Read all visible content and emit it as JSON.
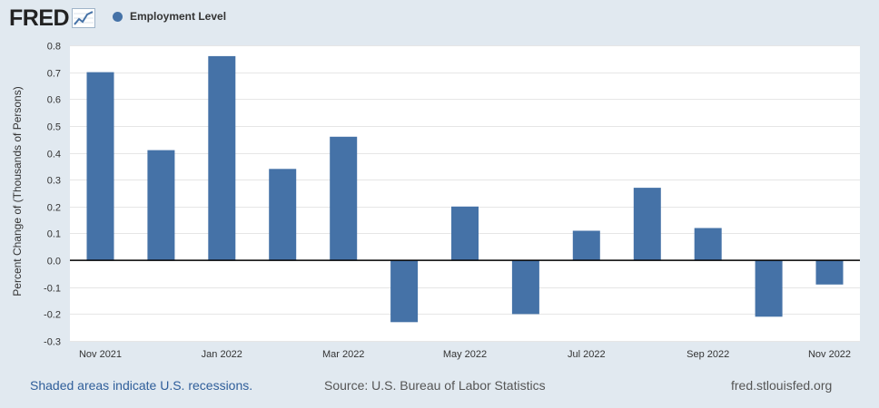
{
  "header": {
    "logo_text": "FRED",
    "logo_icon": "line-graph-icon",
    "legend_label": "Employment Level",
    "legend_color": "#4572a7"
  },
  "footer": {
    "recession_note": "Shaded areas indicate U.S. recessions.",
    "source": "Source: U.S. Bureau of Labor Statistics",
    "url": "fred.stlouisfed.org"
  },
  "colors": {
    "background": "#e1e9f0",
    "plot_background": "#ffffff",
    "bar": "#4572a7",
    "grid": "#e6e6e6"
  },
  "chart_data": {
    "type": "bar",
    "ylabel": "Percent Change of (Thousands of Persons)",
    "ylim": [
      -0.3,
      0.8
    ],
    "yticks": [
      0.8,
      0.7,
      0.6,
      0.5,
      0.4,
      0.3,
      0.2,
      0.1,
      0.0,
      -0.1,
      -0.2,
      -0.3
    ],
    "ytick_labels": [
      "0.8",
      "0.7",
      "0.6",
      "0.5",
      "0.4",
      "0.3",
      "0.2",
      "0.1",
      "0.0",
      "-0.1",
      "-0.2",
      "-0.3"
    ],
    "grid": true,
    "categories": [
      "Nov 2021",
      "Dec 2021",
      "Jan 2022",
      "Feb 2022",
      "Mar 2022",
      "Apr 2022",
      "May 2022",
      "Jun 2022",
      "Jul 2022",
      "Aug 2022",
      "Sep 2022",
      "Oct 2022",
      "Nov 2022"
    ],
    "xtick_labels": [
      "Nov 2021",
      "",
      "Jan 2022",
      "",
      "Mar 2022",
      "",
      "May 2022",
      "",
      "Jul 2022",
      "",
      "Sep 2022",
      "",
      "Nov 2022"
    ],
    "series": [
      {
        "name": "Employment Level",
        "values": [
          0.7,
          0.41,
          0.76,
          0.34,
          0.46,
          -0.23,
          0.2,
          -0.2,
          0.11,
          0.27,
          0.12,
          -0.21,
          -0.09
        ]
      }
    ]
  }
}
